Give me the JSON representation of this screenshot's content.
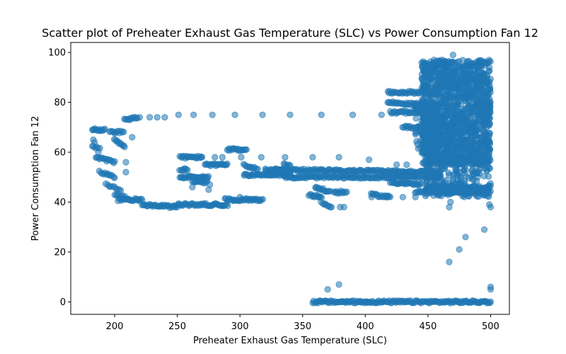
{
  "chart_data": {
    "type": "scatter",
    "title": "Scatter plot of Preheater Exhaust Gas Temperature (SLC) vs Power Consumption Fan 12",
    "xlabel": "Preheater Exhaust Gas Temperature (SLC)",
    "ylabel": "Power Consumption Fan 12",
    "xlim": [
      165,
      515
    ],
    "ylim": [
      -5,
      104
    ],
    "xticks": [
      200,
      250,
      300,
      350,
      400,
      450,
      500
    ],
    "yticks": [
      0,
      20,
      40,
      60,
      80,
      100
    ],
    "grid": false,
    "marker_color": "#1f77b4",
    "marker_alpha": 0.55,
    "segments": [
      {
        "from": [
          182,
          69
        ],
        "to": [
          192,
          69
        ],
        "n": 14
      },
      {
        "from": [
          182,
          62
        ],
        "to": [
          188,
          62
        ],
        "n": 6
      },
      {
        "from": [
          185,
          58
        ],
        "to": [
          200,
          56
        ],
        "n": 16
      },
      {
        "from": [
          188,
          52
        ],
        "to": [
          200,
          50
        ],
        "n": 12
      },
      {
        "from": [
          193,
          47
        ],
        "to": [
          205,
          45
        ],
        "n": 10
      },
      {
        "from": [
          196,
          68
        ],
        "to": [
          207,
          68
        ],
        "n": 12
      },
      {
        "from": [
          200,
          65
        ],
        "to": [
          208,
          62
        ],
        "n": 10
      },
      {
        "from": [
          200,
          43
        ],
        "to": [
          208,
          42
        ],
        "n": 8
      },
      {
        "from": [
          203,
          41
        ],
        "to": [
          222,
          41
        ],
        "n": 24
      },
      {
        "from": [
          222,
          39
        ],
        "to": [
          250,
          38
        ],
        "n": 34
      },
      {
        "from": [
          250,
          39
        ],
        "to": [
          290,
          39
        ],
        "n": 48
      },
      {
        "from": [
          288,
          41
        ],
        "to": [
          318,
          41
        ],
        "n": 36
      },
      {
        "from": [
          208,
          73
        ],
        "to": [
          218,
          74
        ],
        "n": 12
      },
      {
        "from": [
          252,
          58
        ],
        "to": [
          270,
          58
        ],
        "n": 22
      },
      {
        "from": [
          252,
          53
        ],
        "to": [
          258,
          53
        ],
        "n": 8
      },
      {
        "from": [
          252,
          50
        ],
        "to": [
          275,
          50
        ],
        "n": 28
      },
      {
        "from": [
          262,
          48
        ],
        "to": [
          274,
          48
        ],
        "n": 14
      },
      {
        "from": [
          272,
          55
        ],
        "to": [
          290,
          55
        ],
        "n": 22
      },
      {
        "from": [
          290,
          61
        ],
        "to": [
          305,
          61
        ],
        "n": 18
      },
      {
        "from": [
          303,
          55
        ],
        "to": [
          314,
          53
        ],
        "n": 12
      },
      {
        "from": [
          303,
          51
        ],
        "to": [
          340,
          51
        ],
        "n": 44
      },
      {
        "from": [
          320,
          53
        ],
        "to": [
          460,
          52
        ],
        "n": 160
      },
      {
        "from": [
          335,
          50
        ],
        "to": [
          460,
          50
        ],
        "n": 140
      },
      {
        "from": [
          335,
          55
        ],
        "to": [
          340,
          55
        ],
        "n": 6
      },
      {
        "from": [
          355,
          43
        ],
        "to": [
          365,
          42
        ],
        "n": 12
      },
      {
        "from": [
          360,
          46
        ],
        "to": [
          372,
          44
        ],
        "n": 14
      },
      {
        "from": [
          365,
          40
        ],
        "to": [
          372,
          38
        ],
        "n": 8
      },
      {
        "from": [
          375,
          44
        ],
        "to": [
          385,
          44
        ],
        "n": 12
      },
      {
        "from": [
          405,
          43
        ],
        "to": [
          420,
          42
        ],
        "n": 18
      },
      {
        "from": [
          420,
          48
        ],
        "to": [
          445,
          47
        ],
        "n": 28
      },
      {
        "from": [
          440,
          44
        ],
        "to": [
          500,
          44
        ],
        "n": 60
      },
      {
        "from": [
          450,
          46
        ],
        "to": [
          500,
          46
        ],
        "n": 50
      },
      {
        "from": [
          418,
          84
        ],
        "to": [
          445,
          84
        ],
        "n": 30
      },
      {
        "from": [
          418,
          80
        ],
        "to": [
          445,
          79
        ],
        "n": 30
      },
      {
        "from": [
          420,
          76
        ],
        "to": [
          445,
          76
        ],
        "n": 28
      },
      {
        "from": [
          430,
          70
        ],
        "to": [
          448,
          70
        ],
        "n": 20
      },
      {
        "from": [
          358,
          0
        ],
        "to": [
          500,
          0
        ],
        "n": 170
      }
    ],
    "clusters": [
      {
        "x": [
          445,
          500
        ],
        "y": [
          55,
          97
        ],
        "n": 1400
      },
      {
        "x": [
          448,
          500
        ],
        "y": [
          42,
          60
        ],
        "n": 250
      },
      {
        "x": [
          440,
          460
        ],
        "y": [
          60,
          80
        ],
        "n": 120
      }
    ],
    "points": [
      [
        183,
        65
      ],
      [
        184,
        64
      ],
      [
        187,
        60
      ],
      [
        209,
        52
      ],
      [
        209,
        56
      ],
      [
        214,
        66
      ],
      [
        220,
        74
      ],
      [
        228,
        74
      ],
      [
        234,
        74
      ],
      [
        240,
        74
      ],
      [
        251,
        75
      ],
      [
        263,
        75
      ],
      [
        278,
        75
      ],
      [
        296,
        75
      ],
      [
        318,
        75
      ],
      [
        340,
        75
      ],
      [
        365,
        75
      ],
      [
        390,
        75
      ],
      [
        413,
        75
      ],
      [
        262,
        46
      ],
      [
        275,
        45
      ],
      [
        276,
        47
      ],
      [
        280,
        58
      ],
      [
        286,
        58
      ],
      [
        301,
        58
      ],
      [
        317,
        58
      ],
      [
        336,
        58
      ],
      [
        358,
        58
      ],
      [
        379,
        58
      ],
      [
        403,
        57
      ],
      [
        300,
        42
      ],
      [
        310,
        41
      ],
      [
        380,
        38
      ],
      [
        373,
        38
      ],
      [
        383,
        38
      ],
      [
        363,
        42
      ],
      [
        405,
        42
      ],
      [
        417,
        42
      ],
      [
        430,
        42
      ],
      [
        440,
        42
      ],
      [
        425,
        55
      ],
      [
        433,
        55
      ],
      [
        475,
        21
      ],
      [
        480,
        26
      ],
      [
        495,
        29
      ],
      [
        467,
        16
      ],
      [
        500,
        6
      ],
      [
        500,
        5
      ],
      [
        370,
        5
      ],
      [
        379,
        7
      ],
      [
        467,
        38
      ],
      [
        468,
        40
      ],
      [
        500,
        38
      ],
      [
        499,
        39
      ],
      [
        492,
        96
      ],
      [
        499,
        94
      ],
      [
        470,
        99
      ]
    ]
  }
}
